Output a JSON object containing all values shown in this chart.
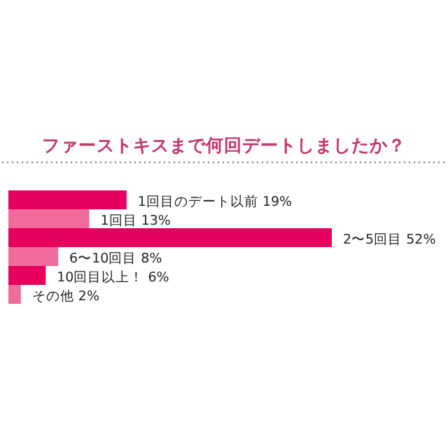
{
  "chart_data": {
    "type": "bar",
    "orientation": "horizontal",
    "title": "ファーストキスまで何回デートしましたか？",
    "categories": [
      null,
      null,
      null,
      null,
      null,
      null
    ],
    "values": [
      19,
      13,
      52,
      8,
      6,
      2
    ],
    "value_labels": [
      "1回目のデート以前 19%",
      "1回目 13%",
      "2〜5回目 52%",
      "6〜10回目 8%",
      "10回目以上！ 6%",
      "その他 2%"
    ],
    "colors": [
      "#e4005c",
      "#f06b9c",
      "#e4005c",
      "#f06b9c",
      "#e4005c",
      "#f06b9c"
    ]
  }
}
